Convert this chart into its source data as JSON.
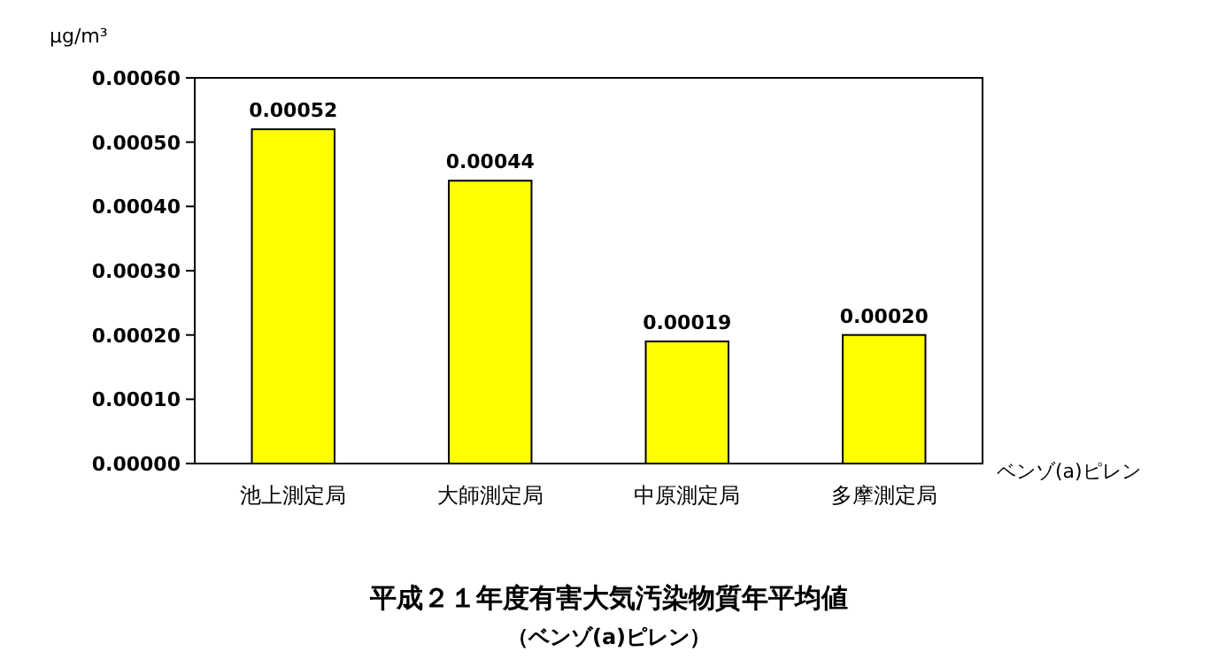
{
  "chart_data": {
    "type": "bar",
    "title": "平成２１年度有害大気汚染物質年平均値",
    "subtitle": "（ベンゾ(a)ピレン）",
    "ylabel": "μg/m³",
    "categories": [
      "池上測定局",
      "大師測定局",
      "中原測定局",
      "多摩測定局"
    ],
    "series": [
      {
        "name": "ベンゾ(a)ピレン",
        "color": "#ffff00",
        "values": [
          0.00052,
          0.00044,
          0.00019,
          0.0002
        ],
        "value_labels": [
          "0.00052",
          "0.00044",
          "0.00019",
          "0.00020"
        ]
      }
    ],
    "ylim": [
      0,
      0.0006
    ],
    "yticks": [
      {
        "value": 0,
        "label": "0.00000"
      },
      {
        "value": 0.0001,
        "label": "0.00010"
      },
      {
        "value": 0.0002,
        "label": "0.00020"
      },
      {
        "value": 0.0003,
        "label": "0.00030"
      },
      {
        "value": 0.0004,
        "label": "0.00040"
      },
      {
        "value": 0.0005,
        "label": "0.00050"
      },
      {
        "value": 0.0006,
        "label": "0.00060"
      }
    ],
    "grid": false
  }
}
